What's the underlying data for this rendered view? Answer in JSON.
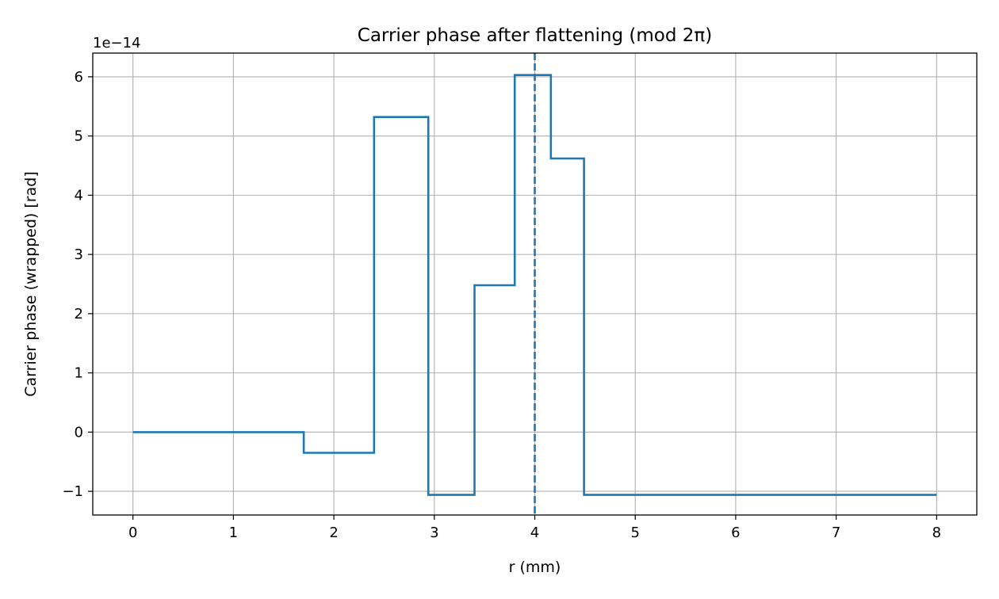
{
  "chart_data": {
    "type": "line",
    "title": "Carrier phase after flattening (mod 2π)",
    "xlabel": "r (mm)",
    "ylabel": "Carrier phase (wrapped) [rad]",
    "y_offset_label": "1e−14",
    "xlim": [
      -0.4,
      8.4
    ],
    "ylim": [
      -1.4,
      6.4
    ],
    "x_ticks": [
      0,
      1,
      2,
      3,
      4,
      5,
      6,
      7,
      8
    ],
    "x_tick_labels": [
      "0",
      "1",
      "2",
      "3",
      "4",
      "5",
      "6",
      "7",
      "8"
    ],
    "y_ticks": [
      -1,
      0,
      1,
      2,
      3,
      4,
      5,
      6
    ],
    "y_tick_labels": [
      "−1",
      "0",
      "1",
      "2",
      "3",
      "4",
      "5",
      "6"
    ],
    "grid": true,
    "line_color": "#1f77b4",
    "grid_color": "#b0b0b0",
    "vline": {
      "x": 4.0,
      "style": "dashed",
      "color": "#1f77b4"
    },
    "series": [
      {
        "x": [
          0,
          1.7,
          1.7,
          2.4,
          2.4,
          2.94,
          2.94,
          3.4,
          3.4,
          3.8,
          3.8,
          4.16,
          4.16,
          4.49,
          4.49,
          8.0
        ],
        "y": [
          0,
          0,
          -0.35,
          -0.35,
          5.32,
          5.32,
          -1.06,
          -1.06,
          2.48,
          2.48,
          6.03,
          6.03,
          4.62,
          4.62,
          -1.06,
          -1.06
        ]
      }
    ]
  }
}
